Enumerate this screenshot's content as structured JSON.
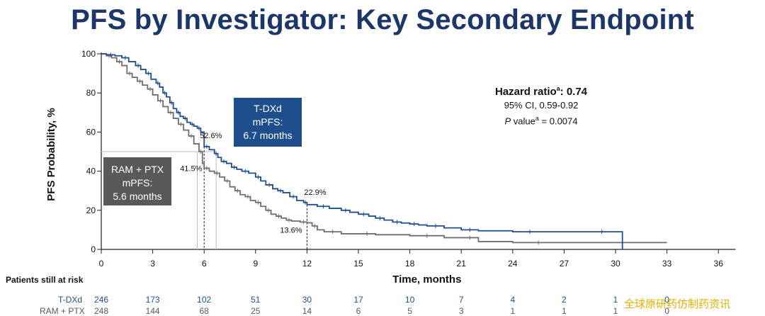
{
  "slide": {
    "title": "PFS by Investigator: Key Secondary Endpoint",
    "watermark": "全球原研药仿制药资讯"
  },
  "annotations": {
    "tdxd_box": [
      "T-DXd",
      "mPFS:",
      "6.7 months"
    ],
    "ram_box": [
      "RAM + PTX",
      "mPFS:",
      "5.6 months"
    ],
    "hazard_label": "Hazard ratio",
    "hazard_sup": "a",
    "hazard_value": ": 0.74",
    "ci": "95% CI, 0.59-0.92",
    "p_prefix": "P",
    "p_label": " value",
    "p_sup": "a",
    "p_value": " = 0.0074",
    "pct_labels": [
      {
        "text": "52.6%",
        "x": 6,
        "y": 52.6,
        "series": "tdxd"
      },
      {
        "text": "41.5%",
        "x": 6,
        "y": 41.5,
        "series": "ram"
      },
      {
        "text": "22.9%",
        "x": 12,
        "y": 22.9,
        "series": "tdxd"
      },
      {
        "text": "13.6%",
        "x": 12,
        "y": 13.6,
        "series": "ram"
      }
    ]
  },
  "risk_table": {
    "title": "Patients still at risk",
    "rows": [
      {
        "label": "T-DXd",
        "values": [
          "246",
          "173",
          "102",
          "51",
          "30",
          "17",
          "10",
          "7",
          "4",
          "2",
          "1",
          "0"
        ]
      },
      {
        "label": "RAM + PTX",
        "values": [
          "248",
          "144",
          "68",
          "25",
          "14",
          "6",
          "5",
          "3",
          "1",
          "1",
          "1",
          "0"
        ]
      }
    ]
  },
  "chart_data": {
    "type": "line",
    "title": "PFS by Investigator: Key Secondary Endpoint",
    "xlabel": "Time, months",
    "ylabel": "PFS Probability, %",
    "xlim": [
      0,
      37
    ],
    "ylim": [
      0,
      100
    ],
    "x_ticks": [
      0,
      3,
      6,
      9,
      12,
      15,
      18,
      21,
      24,
      27,
      30,
      33,
      36
    ],
    "y_ticks": [
      0,
      20,
      40,
      60,
      80,
      100
    ],
    "grid": false,
    "colors": {
      "tdxd": "#1f4e8c",
      "ram": "#6e6e6e",
      "title": "#1c3668"
    },
    "series": [
      {
        "name": "T-DXd",
        "median_months": 6.7,
        "points": [
          [
            0,
            100
          ],
          [
            0.3,
            99.5
          ],
          [
            0.8,
            99
          ],
          [
            1.2,
            98
          ],
          [
            1.6,
            96
          ],
          [
            2.0,
            94
          ],
          [
            2.3,
            92
          ],
          [
            2.6,
            90
          ],
          [
            2.9,
            87
          ],
          [
            3.2,
            85
          ],
          [
            3.4,
            83
          ],
          [
            3.6,
            80
          ],
          [
            3.8,
            78
          ],
          [
            4.0,
            75
          ],
          [
            4.2,
            72
          ],
          [
            4.4,
            70
          ],
          [
            4.6,
            68
          ],
          [
            4.8,
            67
          ],
          [
            5.0,
            65
          ],
          [
            5.2,
            64
          ],
          [
            5.4,
            63
          ],
          [
            5.6,
            62
          ],
          [
            5.8,
            60
          ],
          [
            6.0,
            52.6
          ],
          [
            6.3,
            51
          ],
          [
            6.6,
            49
          ],
          [
            6.8,
            47
          ],
          [
            7.0,
            45
          ],
          [
            7.3,
            44
          ],
          [
            7.6,
            42
          ],
          [
            7.9,
            41
          ],
          [
            8.2,
            40
          ],
          [
            8.6,
            39
          ],
          [
            9.0,
            37
          ],
          [
            9.3,
            35
          ],
          [
            9.6,
            33
          ],
          [
            10.0,
            31
          ],
          [
            10.3,
            30
          ],
          [
            10.6,
            29
          ],
          [
            11.0,
            27
          ],
          [
            11.4,
            25
          ],
          [
            11.8,
            24
          ],
          [
            12.0,
            22.9
          ],
          [
            12.6,
            22
          ],
          [
            13.3,
            21
          ],
          [
            14.0,
            20
          ],
          [
            14.5,
            19
          ],
          [
            15.0,
            18
          ],
          [
            15.6,
            17
          ],
          [
            16.0,
            16
          ],
          [
            16.5,
            15
          ],
          [
            17.0,
            14
          ],
          [
            17.5,
            13.5
          ],
          [
            18.0,
            13
          ],
          [
            18.5,
            12.5
          ],
          [
            19.0,
            12
          ],
          [
            20.0,
            11
          ],
          [
            21.0,
            10
          ],
          [
            22.0,
            9.5
          ],
          [
            24.0,
            9
          ],
          [
            26.0,
            9
          ],
          [
            28.0,
            9
          ],
          [
            30.4,
            9
          ],
          [
            30.4,
            0
          ]
        ]
      },
      {
        "name": "RAM + PTX",
        "median_months": 5.6,
        "points": [
          [
            0,
            100
          ],
          [
            0.3,
            99
          ],
          [
            0.6,
            98
          ],
          [
            0.9,
            96
          ],
          [
            1.2,
            94
          ],
          [
            1.5,
            90
          ],
          [
            1.8,
            88
          ],
          [
            2.1,
            86
          ],
          [
            2.4,
            84
          ],
          [
            2.7,
            82
          ],
          [
            3.0,
            79
          ],
          [
            3.3,
            76
          ],
          [
            3.6,
            73
          ],
          [
            3.9,
            70
          ],
          [
            4.2,
            67
          ],
          [
            4.5,
            64
          ],
          [
            4.8,
            61
          ],
          [
            5.1,
            58
          ],
          [
            5.4,
            54
          ],
          [
            5.7,
            50
          ],
          [
            5.9,
            44
          ],
          [
            6.0,
            41.5
          ],
          [
            6.3,
            40
          ],
          [
            6.6,
            39
          ],
          [
            6.9,
            37
          ],
          [
            7.2,
            35
          ],
          [
            7.5,
            32
          ],
          [
            7.8,
            30
          ],
          [
            8.1,
            28
          ],
          [
            8.4,
            27
          ],
          [
            8.7,
            25
          ],
          [
            9.0,
            24
          ],
          [
            9.3,
            22
          ],
          [
            9.6,
            20
          ],
          [
            9.9,
            18
          ],
          [
            10.2,
            17
          ],
          [
            10.5,
            16
          ],
          [
            10.8,
            15
          ],
          [
            11.1,
            14.5
          ],
          [
            11.6,
            14
          ],
          [
            12.0,
            13.6
          ],
          [
            12.3,
            12
          ],
          [
            12.6,
            10
          ],
          [
            13.0,
            9
          ],
          [
            14.0,
            8
          ],
          [
            15.0,
            8
          ],
          [
            16.0,
            7.5
          ],
          [
            18.0,
            7
          ],
          [
            20.0,
            6
          ],
          [
            21.0,
            6
          ],
          [
            22.0,
            4
          ],
          [
            24.0,
            3.5
          ],
          [
            27.0,
            3.5
          ],
          [
            30.0,
            3.5
          ],
          [
            33.0,
            3.5
          ]
        ]
      }
    ]
  }
}
